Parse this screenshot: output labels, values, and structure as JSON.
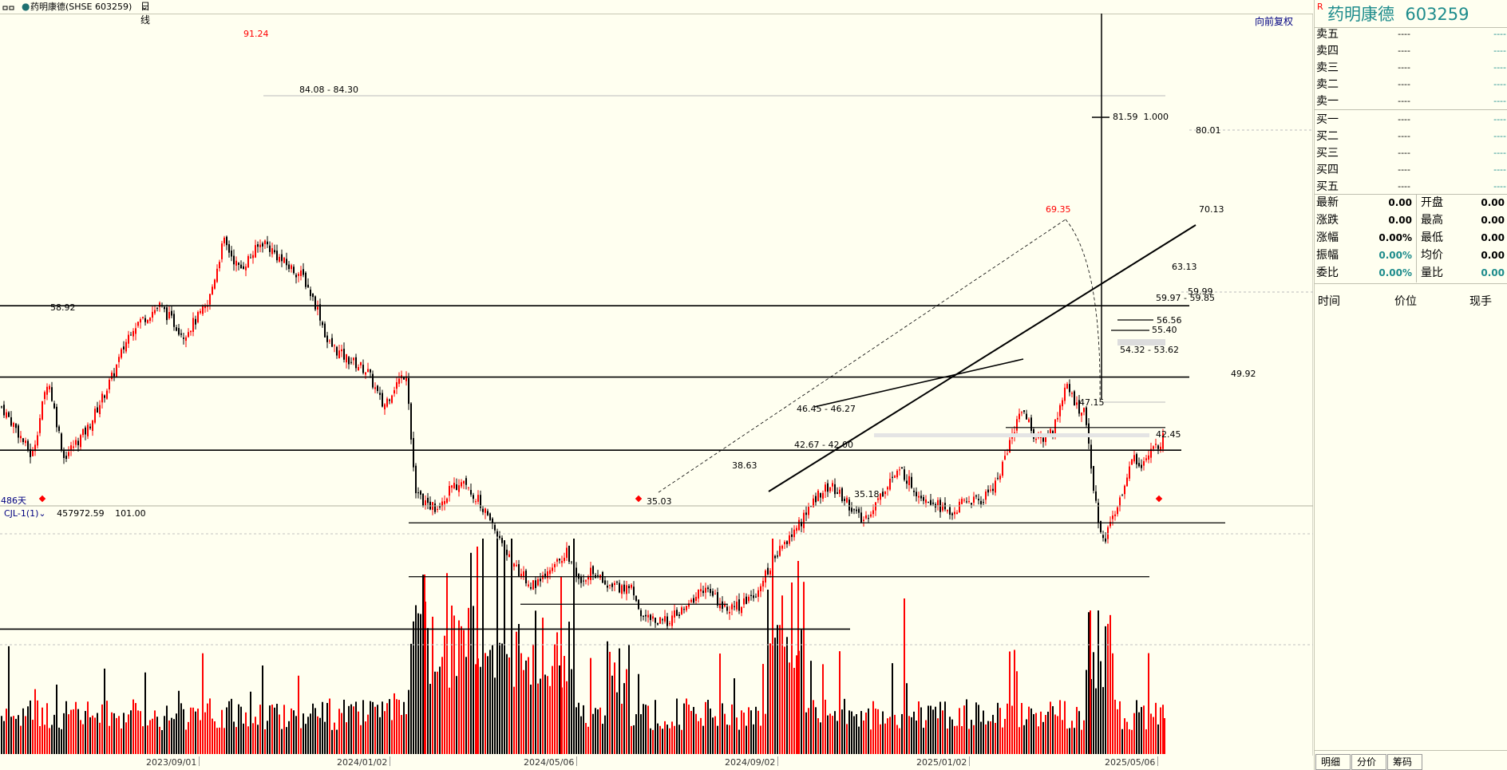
{
  "toolbar": {
    "icon": "window-icon",
    "title": "药明康德(SHSE 603259)",
    "period": "日线"
  },
  "chart": {
    "adjust_label": "向前复权",
    "days_label": "486天",
    "indicator_name": "CJL-1(1)",
    "indicator_value1": "457972.59",
    "indicator_value2": "101.00",
    "x_ticks": [
      "2023/09/01",
      "2024/01/02",
      "2024/05/06",
      "2024/09/02",
      "2025/01/02",
      "2025/05/06"
    ],
    "price_labels": {
      "high_all": "91.24",
      "range1": "84.08 - 84.30",
      "crosshair": "81.59  1.000",
      "level_80": "80.01",
      "level_70": "70.13",
      "peak2": "69.35",
      "level_63": "63.13",
      "level_60": "59.99",
      "range2": "59.97 - 59.85",
      "low1": "58.92",
      "level_5656": "56.56",
      "level_5540": "55.40",
      "range3": "54.32 - 53.62",
      "level_4992": "49.92",
      "low_4715": "47.15",
      "range4": "46.45 - 46.27",
      "level_4245": "42.45",
      "range5": "42.67 - 42.00",
      "low_3863": "38.63",
      "level_3518": "35.18",
      "low_3503": "35.03"
    }
  },
  "panel": {
    "r_badge": "R",
    "stock_title": "药明康德  603259",
    "order_book": [
      {
        "label": "卖五",
        "price": "----",
        "vol": "----"
      },
      {
        "label": "卖四",
        "price": "----",
        "vol": "----"
      },
      {
        "label": "卖三",
        "price": "----",
        "vol": "----"
      },
      {
        "label": "卖二",
        "price": "----",
        "vol": "----"
      },
      {
        "label": "卖一",
        "price": "----",
        "vol": "----"
      },
      {
        "label": "买一",
        "price": "----",
        "vol": "----"
      },
      {
        "label": "买二",
        "price": "----",
        "vol": "----"
      },
      {
        "label": "买三",
        "price": "----",
        "vol": "----"
      },
      {
        "label": "买四",
        "price": "----",
        "vol": "----"
      },
      {
        "label": "买五",
        "price": "----",
        "vol": "----"
      }
    ],
    "quote": [
      {
        "l1": "最新",
        "v1": "0.00",
        "l2": "开盘",
        "v2": "0.00"
      },
      {
        "l1": "涨跌",
        "v1": "0.00",
        "l2": "最高",
        "v2": "0.00"
      },
      {
        "l1": "涨幅",
        "v1": "0.00%",
        "l2": "最低",
        "v2": "0.00"
      },
      {
        "l1": "振幅",
        "v1": "0.00%",
        "l2": "均价",
        "v2": "0.00"
      },
      {
        "l1": "委比",
        "v1": "0.00%",
        "l2": "量比",
        "v2": "0.00"
      }
    ],
    "ticks_headers": {
      "time": "时间",
      "price": "价位",
      "hand": "现手"
    },
    "tabs": [
      "明细",
      "分价",
      "筹码"
    ]
  },
  "colors": {
    "background": "#fffff0",
    "up": "#ff0000",
    "down": "#000000",
    "teal": "#1e8c8c",
    "navy": "#000080"
  }
}
